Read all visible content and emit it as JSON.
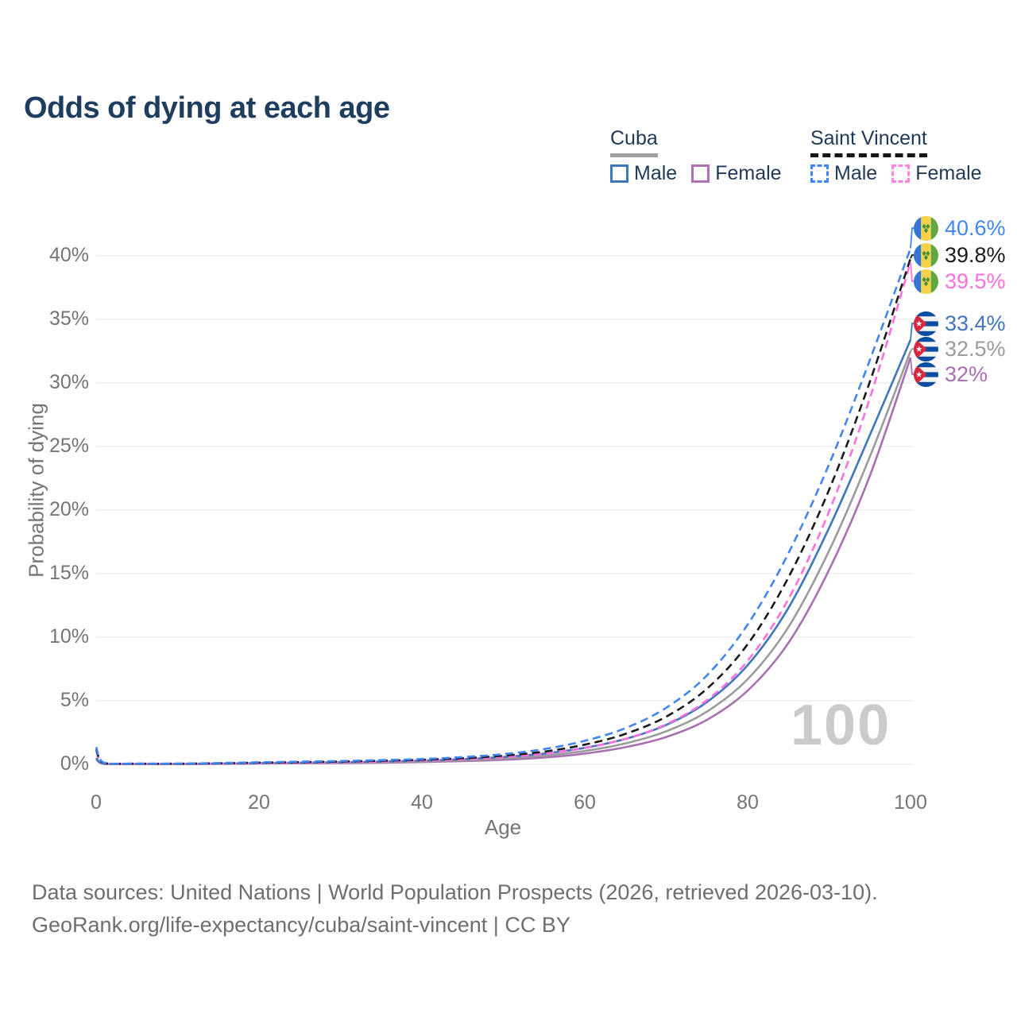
{
  "title": "Odds of dying at each age",
  "legend": {
    "groups": [
      {
        "name": "Cuba",
        "style": "solid-gray-underline",
        "items": [
          {
            "label": "Male",
            "color": "#4076ba"
          },
          {
            "label": "Female",
            "color": "#b171b5"
          }
        ]
      },
      {
        "name": "Saint Vincent",
        "style": "dashed-black-underline",
        "items": [
          {
            "label": "Male",
            "color": "#4285f4"
          },
          {
            "label": "Female",
            "color": "#ff85e4"
          }
        ]
      }
    ]
  },
  "watermark": "100",
  "chart_data": {
    "type": "line",
    "title": "Odds of dying at each age",
    "xlabel": "Age",
    "ylabel": "Probability of dying",
    "xlim": [
      0,
      100
    ],
    "ylim": [
      0,
      42
    ],
    "grid": "horizontal",
    "y_ticks": [
      "0%",
      "5%",
      "10%",
      "15%",
      "20%",
      "25%",
      "30%",
      "35%",
      "40%"
    ],
    "x_ticks": [
      "0",
      "20",
      "40",
      "60",
      "80",
      "100"
    ],
    "x": [
      0,
      1,
      5,
      10,
      15,
      20,
      25,
      30,
      35,
      40,
      45,
      50,
      55,
      60,
      65,
      70,
      75,
      80,
      85,
      90,
      95,
      100
    ],
    "series": [
      {
        "name": "Saint Vincent Male",
        "country": "Saint Vincent",
        "sex": "Male",
        "color": "#4285f4",
        "dash": true,
        "end_label": "40.6%",
        "flag": "saint-vincent",
        "values": [
          1.35,
          0.12,
          0.06,
          0.06,
          0.1,
          0.16,
          0.21,
          0.26,
          0.33,
          0.42,
          0.57,
          0.8,
          1.2,
          1.85,
          2.85,
          4.45,
          7.0,
          11.0,
          16.6,
          23.6,
          31.8,
          40.6
        ]
      },
      {
        "name": "Saint Vincent All",
        "country": "Saint Vincent",
        "sex": "All",
        "color": "#1a1a1a",
        "dash": true,
        "end_label": "39.8%",
        "flag": "saint-vincent",
        "values": [
          1.2,
          0.1,
          0.05,
          0.05,
          0.08,
          0.13,
          0.17,
          0.22,
          0.28,
          0.36,
          0.48,
          0.68,
          1.0,
          1.55,
          2.4,
          3.75,
          5.95,
          9.45,
          14.7,
          21.6,
          30.1,
          39.8
        ]
      },
      {
        "name": "Saint Vincent Female",
        "country": "Saint Vincent",
        "sex": "Female",
        "color": "#ff6fe1",
        "dash": true,
        "end_label": "39.5%",
        "flag": "saint-vincent",
        "values": [
          1.05,
          0.09,
          0.04,
          0.04,
          0.06,
          0.09,
          0.12,
          0.17,
          0.22,
          0.3,
          0.4,
          0.57,
          0.84,
          1.28,
          2.0,
          3.15,
          5.05,
          8.15,
          13.0,
          19.9,
          28.8,
          39.5
        ]
      },
      {
        "name": "Cuba Male",
        "country": "Cuba",
        "sex": "Male",
        "color": "#4076ba",
        "dash": false,
        "end_label": "33.4%",
        "flag": "cuba",
        "values": [
          0.5,
          0.05,
          0.03,
          0.03,
          0.06,
          0.1,
          0.13,
          0.17,
          0.22,
          0.29,
          0.4,
          0.58,
          0.85,
          1.3,
          2.0,
          3.1,
          4.9,
          7.8,
          12.3,
          18.6,
          25.9,
          33.4
        ]
      },
      {
        "name": "Cuba All",
        "country": "Cuba",
        "sex": "All",
        "color": "#9b9b9b",
        "dash": false,
        "end_label": "32.5%",
        "flag": "cuba",
        "values": [
          0.45,
          0.04,
          0.02,
          0.02,
          0.05,
          0.08,
          0.1,
          0.13,
          0.17,
          0.23,
          0.32,
          0.46,
          0.68,
          1.05,
          1.65,
          2.6,
          4.15,
          6.7,
          10.8,
          16.8,
          24.2,
          32.5
        ]
      },
      {
        "name": "Cuba Female",
        "country": "Cuba",
        "sex": "Female",
        "color": "#a96fb2",
        "dash": false,
        "end_label": "32%",
        "flag": "cuba",
        "values": [
          0.4,
          0.04,
          0.02,
          0.02,
          0.04,
          0.06,
          0.08,
          0.1,
          0.13,
          0.18,
          0.25,
          0.36,
          0.54,
          0.85,
          1.35,
          2.15,
          3.5,
          5.8,
          9.55,
          15.3,
          22.7,
          32.0
        ]
      }
    ]
  },
  "footer": {
    "line1": "Data sources: United Nations | World Population Prospects (2026, retrieved 2026-03-10).",
    "line2": "GeoRank.org/life-expectancy/cuba/saint-vincent | CC BY"
  }
}
